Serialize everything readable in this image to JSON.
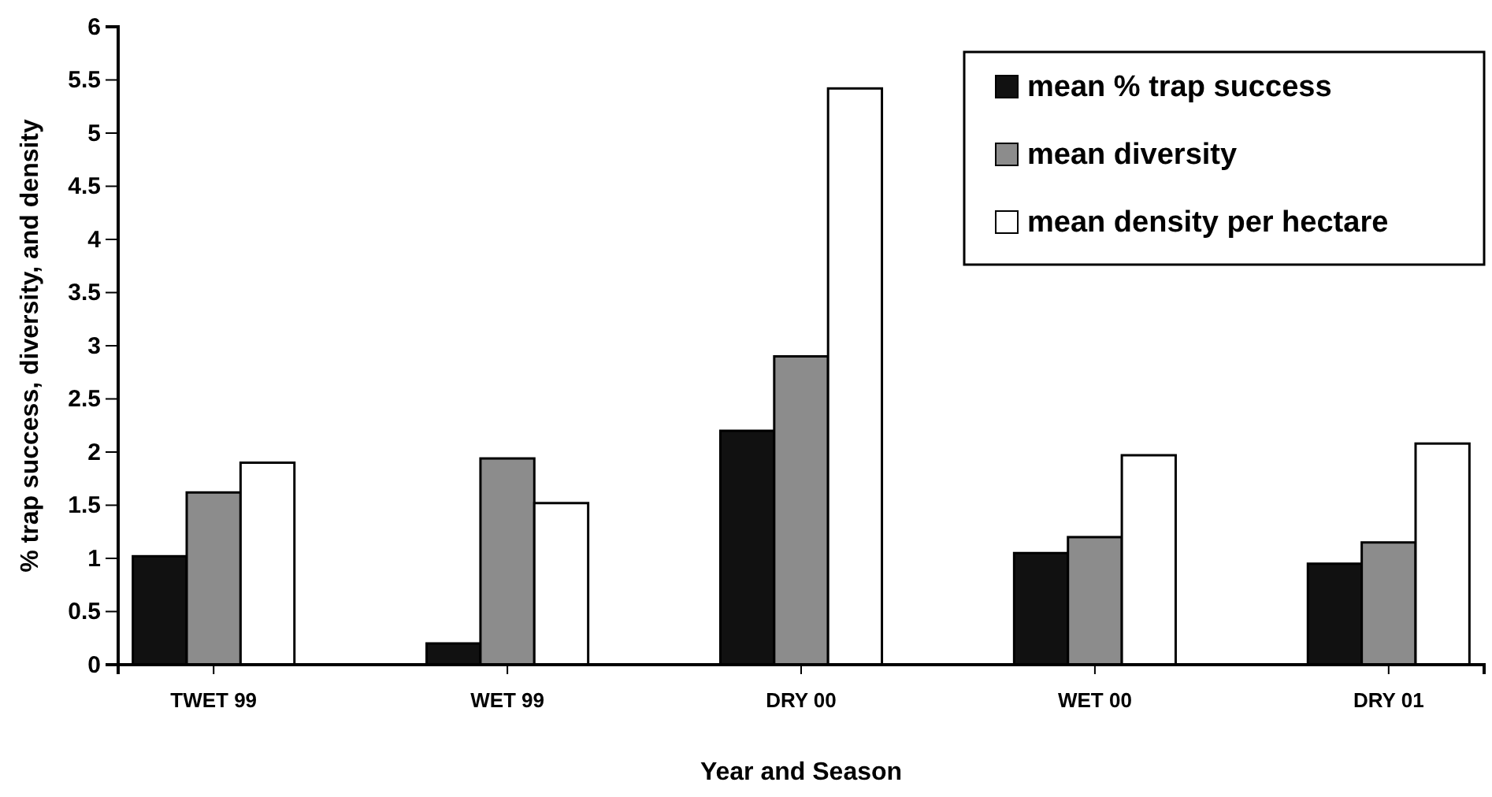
{
  "chart_data": {
    "type": "bar",
    "xlabel": "Year and Season",
    "ylabel": "% trap success, diversity, and density",
    "categories": [
      "TWET 99",
      "WET 99",
      "DRY 00",
      "WET 00",
      "DRY 01"
    ],
    "series": [
      {
        "name": "mean % trap success",
        "color": "#111111",
        "values": [
          1.02,
          0.2,
          2.2,
          1.05,
          0.95
        ]
      },
      {
        "name": "mean diversity",
        "color": "#8c8c8c",
        "values": [
          1.62,
          1.94,
          2.9,
          1.2,
          1.15
        ]
      },
      {
        "name": "mean density per hectare",
        "color": "#ffffff",
        "values": [
          1.9,
          1.52,
          5.42,
          1.97,
          2.08
        ]
      }
    ],
    "ylim": [
      0,
      6
    ],
    "yticks": [
      0,
      0.5,
      1,
      1.5,
      2,
      2.5,
      3,
      3.5,
      4,
      4.5,
      5,
      5.5,
      6
    ],
    "grid": false,
    "legend": "top right"
  }
}
